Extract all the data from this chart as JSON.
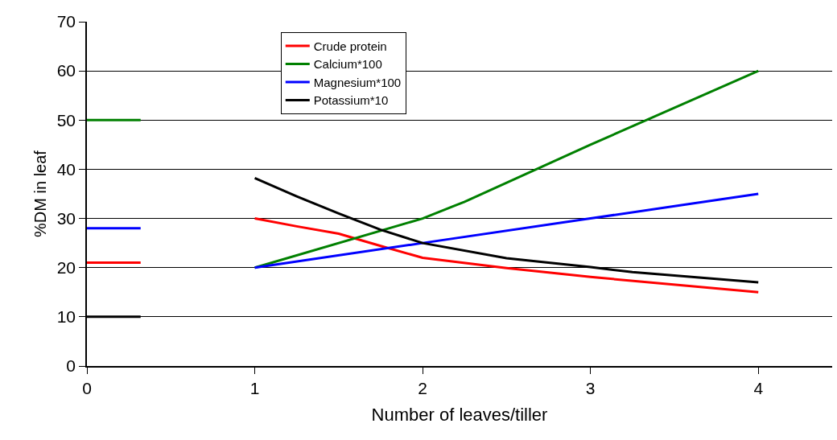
{
  "chart_data": {
    "type": "line",
    "xlabel": "Number of leaves/tiller",
    "ylabel": "%DM in leaf",
    "xlim": [
      0,
      4.44
    ],
    "xticks": [
      0,
      1,
      2,
      3,
      4
    ],
    "ylim": [
      0,
      70
    ],
    "yticks": [
      0,
      10,
      20,
      30,
      40,
      50,
      60,
      70
    ],
    "grid": "y",
    "legend": "top",
    "line_style": "solid",
    "marker": "none",
    "series": [
      {
        "name": "Crude protein",
        "color": "#ff0000",
        "x": [
          0,
          0.32,
          null,
          1,
          1.25,
          1.5,
          1.75,
          2,
          2.5,
          3,
          4
        ],
        "values": [
          21,
          21,
          null,
          30,
          28.4,
          26.9,
          24.4,
          22,
          19.9,
          18.1,
          15
        ]
      },
      {
        "name": "Calcium*100",
        "color": "#008000",
        "x": [
          0,
          0.32,
          null,
          1,
          2,
          2.25,
          3,
          4
        ],
        "values": [
          50,
          50,
          null,
          20,
          30,
          33.4,
          45,
          60
        ]
      },
      {
        "name": "Magnesium*100",
        "color": "#0000ff",
        "x": [
          0,
          0.32,
          null,
          1,
          2,
          3,
          4
        ],
        "values": [
          28,
          28,
          null,
          20,
          25,
          30,
          35
        ]
      },
      {
        "name": "Potassium*10",
        "color": "#000000",
        "x": [
          0,
          0.32,
          null,
          1,
          1.25,
          1.5,
          1.75,
          2,
          2.5,
          3,
          3.25,
          4
        ],
        "values": [
          10,
          10,
          null,
          38.2,
          34.5,
          31,
          27.7,
          25,
          21.9,
          20.1,
          19.1,
          17
        ]
      }
    ]
  }
}
